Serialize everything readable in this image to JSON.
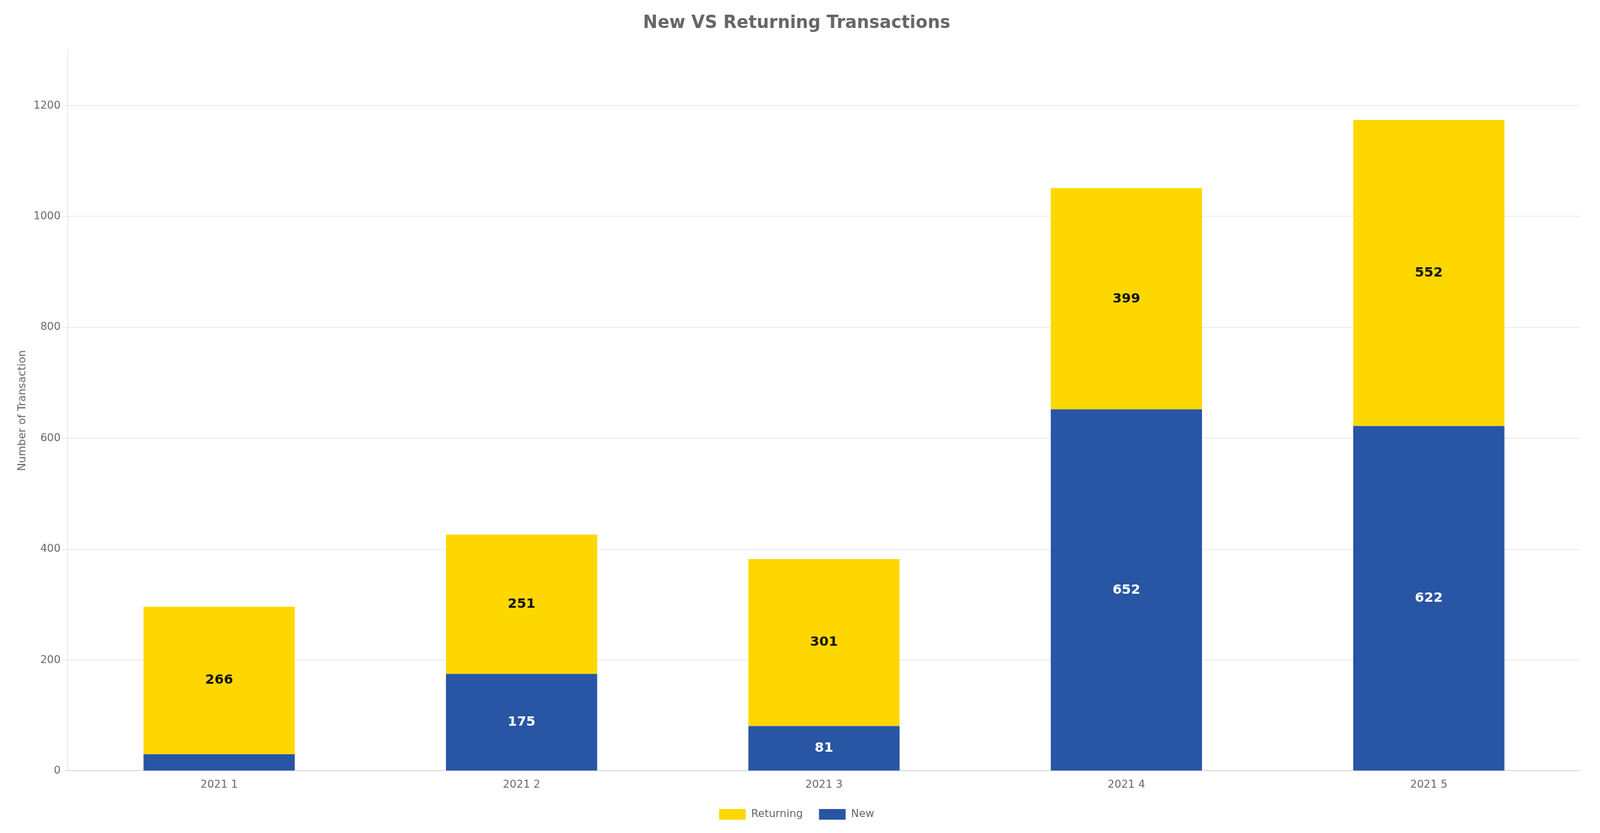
{
  "chart_data": {
    "type": "bar",
    "title": "New VS Returning Transactions",
    "categories": [
      "2021 1",
      "2021 2",
      "2021 3",
      "2021 4",
      "2021 5"
    ],
    "series": [
      {
        "name": "New",
        "color": "#2855A4",
        "values": [
          30,
          175,
          81,
          652,
          622
        ],
        "value_labels": [
          null,
          "175",
          "81",
          "652",
          "622"
        ]
      },
      {
        "name": "Returning",
        "color": "#FFD700",
        "values": [
          266,
          251,
          301,
          399,
          552
        ]
      }
    ],
    "ylabel": "Number of Transaction",
    "ylim": [
      0,
      1300
    ],
    "yticks": [
      0,
      200,
      400,
      600,
      800,
      1000,
      1200
    ],
    "stacked": true,
    "grid": true,
    "legend": "bottom",
    "data_labels": true
  }
}
